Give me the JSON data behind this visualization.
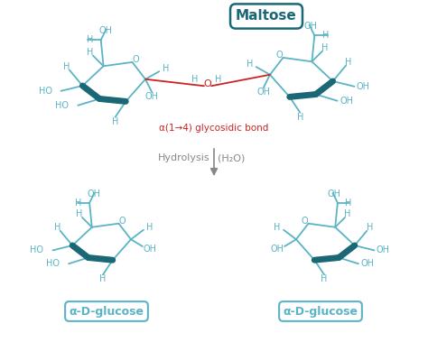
{
  "bg_color": "#ffffff",
  "teal_dark": "#1a6875",
  "teal_light": "#5ab4c5",
  "red_color": "#cc2222",
  "gray_color": "#888888",
  "title": "Maltose",
  "label_glucose": "α-D-glucose",
  "hydrolysis_text": "Hydrolysis",
  "water_text": "(H₂O)",
  "glycosidic_text": "α(1→4) glycosidic bond",
  "figsize": [
    4.74,
    3.79
  ],
  "dpi": 100
}
